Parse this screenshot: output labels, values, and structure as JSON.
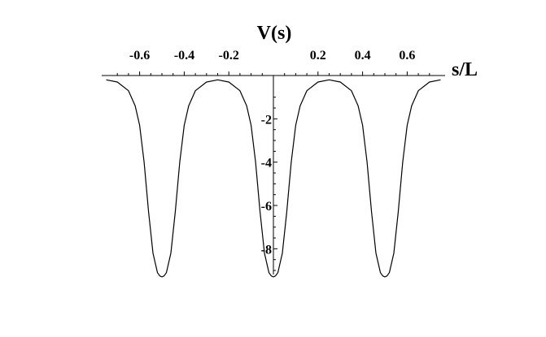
{
  "chart_data": {
    "type": "line",
    "title": "",
    "xlabel": "s/L",
    "ylabel": "V(s)",
    "xlim": [
      -0.75,
      0.75
    ],
    "ylim": [
      -9.3,
      0
    ],
    "x_ticks": [
      -0.6,
      -0.4,
      -0.2,
      0.2,
      0.4,
      0.6
    ],
    "x_tick_labels": [
      "-0.6",
      "-0.4",
      "-0.2",
      "0.2",
      "0.4",
      "0.6"
    ],
    "y_ticks": [
      -2,
      -4,
      -6,
      -8
    ],
    "y_tick_labels": [
      "-2",
      "-4",
      "-6",
      "-8"
    ],
    "grid": false,
    "legend": "none",
    "series": [
      {
        "color": "#000000",
        "x": [
          -0.75,
          -0.7,
          -0.65,
          -0.62,
          -0.6,
          -0.58,
          -0.56,
          -0.54,
          -0.52,
          -0.51,
          -0.5,
          -0.49,
          -0.48,
          -0.46,
          -0.44,
          -0.42,
          -0.4,
          -0.38,
          -0.35,
          -0.3,
          -0.25,
          -0.2,
          -0.15,
          -0.12,
          -0.1,
          -0.08,
          -0.06,
          -0.04,
          -0.02,
          -0.01,
          0,
          0.01,
          0.02,
          0.04,
          0.06,
          0.08,
          0.1,
          0.12,
          0.15,
          0.2,
          0.25,
          0.3,
          0.35,
          0.38,
          0.4,
          0.42,
          0.44,
          0.46,
          0.48,
          0.49,
          0.5,
          0.51,
          0.52,
          0.54,
          0.56,
          0.58,
          0.6,
          0.62,
          0.65,
          0.7,
          0.75
        ],
        "y": [
          -0.2,
          -0.3,
          -0.7,
          -1.4,
          -2.3,
          -4.0,
          -6.3,
          -8.2,
          -9.1,
          -9.25,
          -9.3,
          -9.25,
          -9.1,
          -8.2,
          -6.3,
          -4.0,
          -2.3,
          -1.4,
          -0.7,
          -0.3,
          -0.2,
          -0.3,
          -0.7,
          -1.4,
          -2.3,
          -4.0,
          -6.3,
          -8.2,
          -9.1,
          -9.25,
          -9.3,
          -9.25,
          -9.1,
          -8.2,
          -6.3,
          -4.0,
          -2.3,
          -1.4,
          -0.7,
          -0.3,
          -0.2,
          -0.3,
          -0.7,
          -1.4,
          -2.3,
          -4.0,
          -6.3,
          -8.2,
          -9.1,
          -9.25,
          -9.3,
          -9.25,
          -9.1,
          -8.2,
          -6.3,
          -4.0,
          -2.3,
          -1.4,
          -0.7,
          -0.3,
          -0.2
        ]
      }
    ]
  }
}
